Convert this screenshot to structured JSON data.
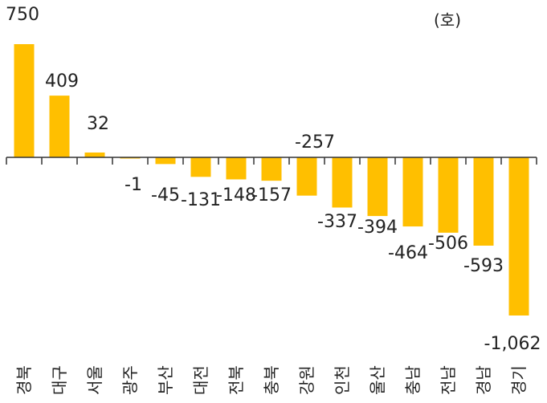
{
  "chart_data": {
    "type": "bar",
    "unit_label": "(호)",
    "categories": [
      "경북",
      "대구",
      "서울",
      "광주",
      "부산",
      "대전",
      "전북",
      "충북",
      "강원",
      "인천",
      "울산",
      "충남",
      "전남",
      "경남",
      "경기"
    ],
    "values": [
      750,
      409,
      32,
      -1,
      -45,
      -131,
      -148,
      -157,
      -257,
      -337,
      -394,
      -464,
      -506,
      -593,
      -1062
    ],
    "value_labels": [
      "750",
      "409",
      "32",
      "-1",
      "-45",
      "-131",
      "-148",
      "-157",
      "-257",
      "-337",
      "-394",
      "-464",
      "-506",
      "-593",
      "-1,062"
    ],
    "ylim": [
      -1062,
      750
    ],
    "bar_color": "#FFBF00",
    "axis_color": "#333333",
    "grid": false,
    "legend": false
  }
}
